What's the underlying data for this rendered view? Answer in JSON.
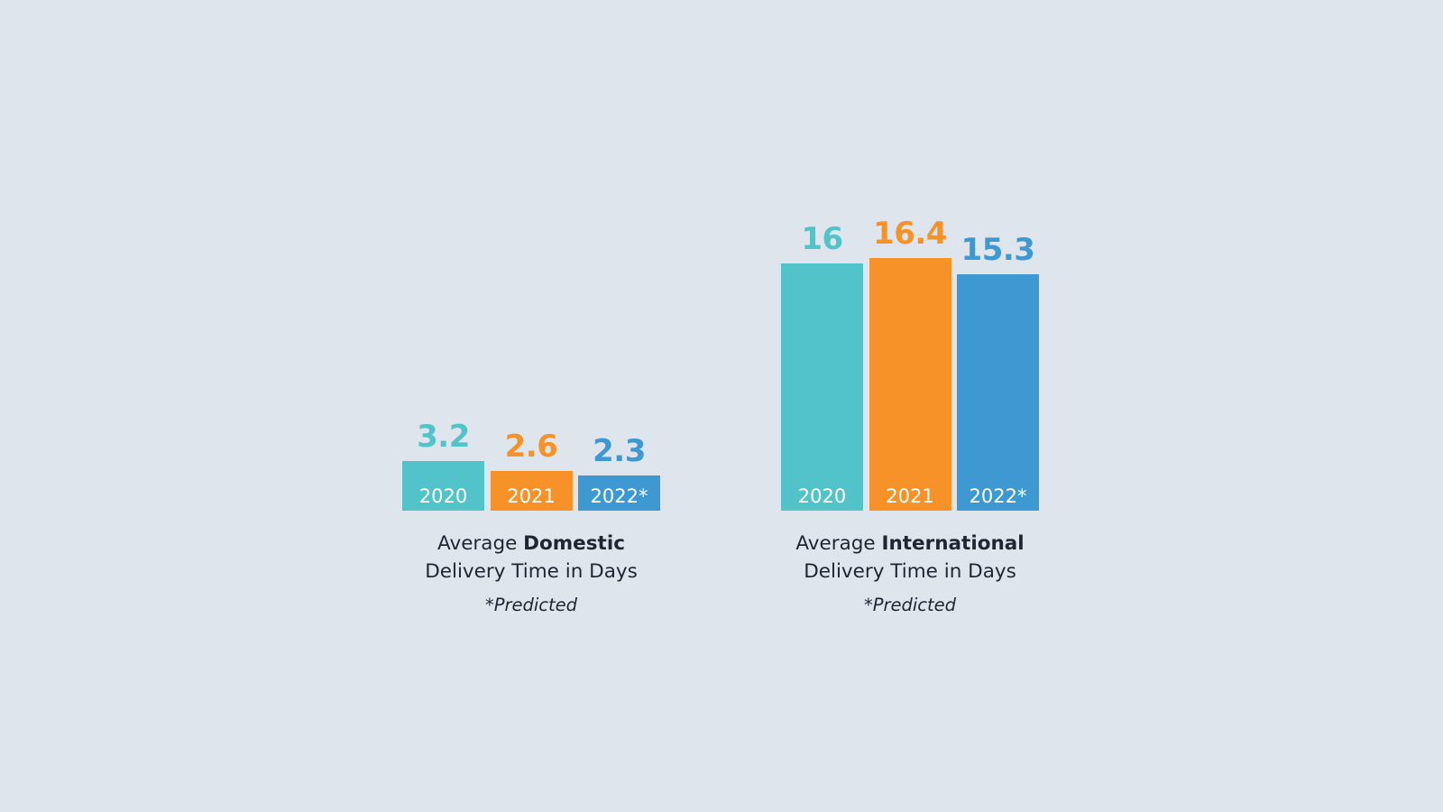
{
  "colors": {
    "background": "#dfe5ec",
    "year_2020": "#52c4c9",
    "year_2021": "#f79229",
    "year_2022": "#3e98d2",
    "caption_text": "#1f2533",
    "bar_label_text": "#ffffff"
  },
  "chart_data": [
    {
      "type": "bar",
      "categories": [
        "2020",
        "2021",
        "2022*"
      ],
      "values": [
        3.2,
        2.6,
        2.3
      ],
      "value_labels": [
        "3.2",
        "2.6",
        "2.3"
      ],
      "caption_prefix": "Average ",
      "caption_emphasis": "Domestic",
      "caption_suffix": "Delivery Time in Days",
      "footnote": "*Predicted",
      "ylim": [
        0,
        16.4
      ],
      "grid": false
    },
    {
      "type": "bar",
      "categories": [
        "2020",
        "2021",
        "2022*"
      ],
      "values": [
        16,
        16.4,
        15.3
      ],
      "value_labels": [
        "16",
        "16.4",
        "15.3"
      ],
      "caption_prefix": "Average ",
      "caption_emphasis": "International",
      "caption_suffix": "Delivery Time in Days",
      "footnote": "*Predicted",
      "ylim": [
        0,
        16.4
      ],
      "grid": false
    }
  ]
}
